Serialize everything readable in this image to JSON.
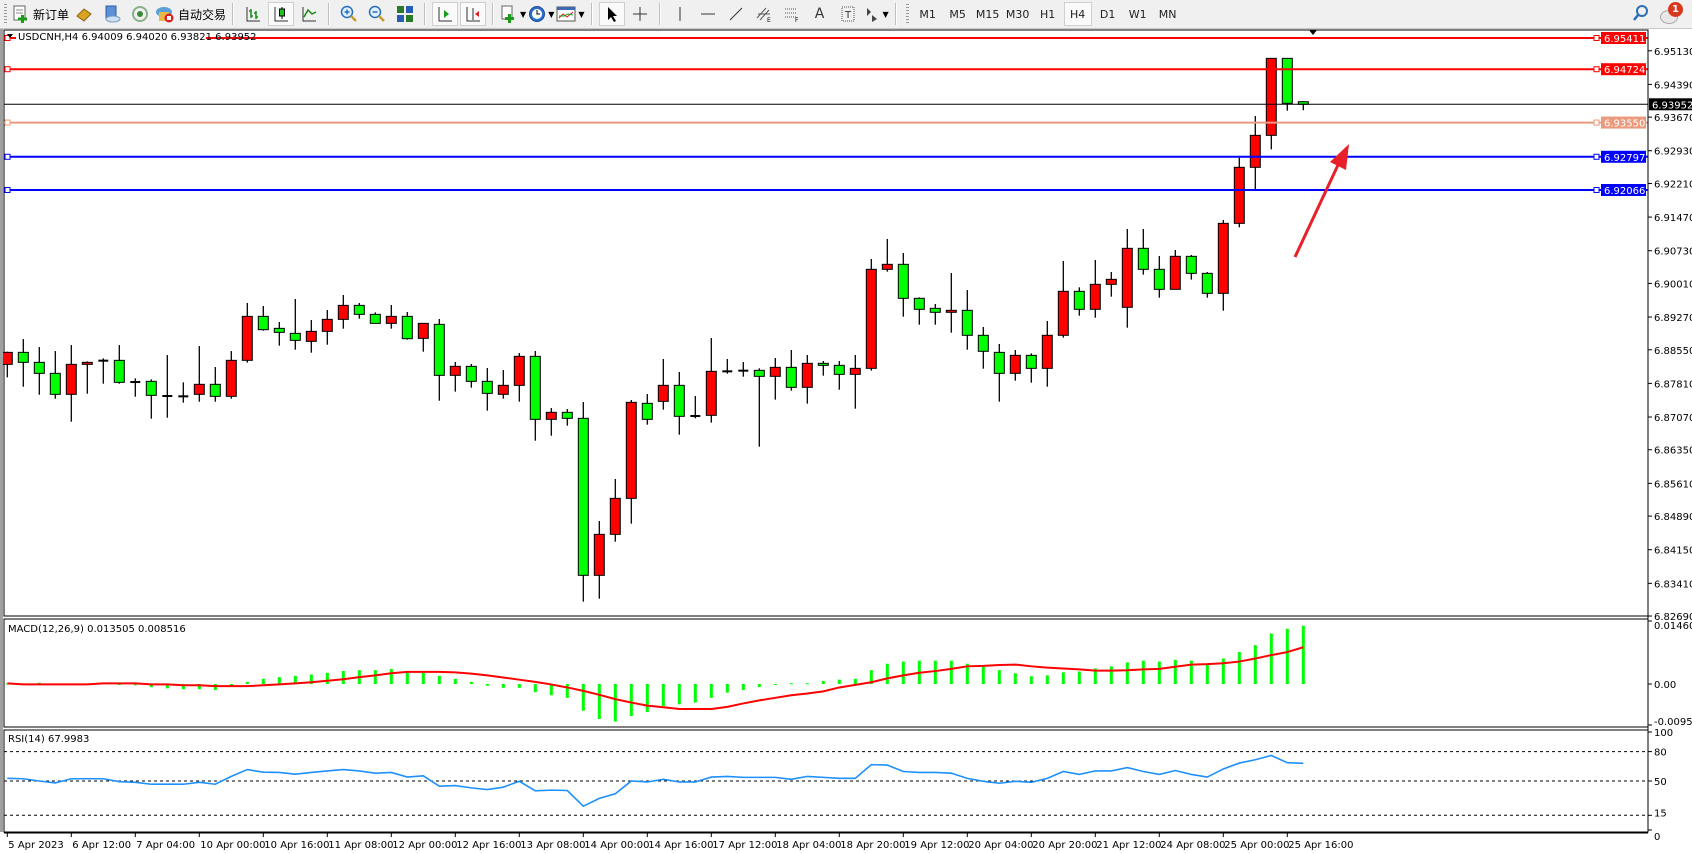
{
  "toolbar": {
    "new_order_label": "新订单",
    "auto_trading_label": "自动交易",
    "timeframes": [
      "M1",
      "M5",
      "M15",
      "M30",
      "H1",
      "H4",
      "D1",
      "W1",
      "MN"
    ],
    "active_timeframe": "H4",
    "notification_count": "1"
  },
  "colors": {
    "bull_body": "#ff0000",
    "bear_body": "#00ff00",
    "candle_outline": "#000000",
    "macd_hist": "#00ff00",
    "macd_signal": "#ff0000",
    "rsi_line": "#1e90ff",
    "arrow": "#e8202a"
  },
  "chart_data": {
    "type": "candlestick",
    "header": "USDCNH,H4  6.94009 6.94020 6.93821 6.93952",
    "ohlc_order": [
      "open",
      "high",
      "low",
      "close"
    ],
    "candles": [
      [
        6.88229,
        6.88508,
        6.87943,
        6.88493
      ],
      [
        6.88493,
        6.88786,
        6.87737,
        6.88273
      ],
      [
        6.88273,
        6.8861,
        6.87561,
        6.88031
      ],
      [
        6.88031,
        6.88522,
        6.87473,
        6.87569
      ],
      [
        6.87569,
        6.88654,
        6.86967,
        6.88229
      ],
      [
        6.88229,
        6.88295,
        6.87583,
        6.88273
      ],
      [
        6.8831,
        6.88361,
        6.87803,
        6.8831
      ],
      [
        6.88317,
        6.88654,
        6.87803,
        6.87833
      ],
      [
        6.8784,
        6.87921,
        6.87517,
        6.8784
      ],
      [
        6.87855,
        6.87899,
        6.87033,
        6.87547
      ],
      [
        6.87532,
        6.88434,
        6.87055,
        6.87532
      ],
      [
        6.87525,
        6.87833,
        6.87385,
        6.87525
      ],
      [
        6.87569,
        6.88632,
        6.87407,
        6.87789
      ],
      [
        6.87789,
        6.8817,
        6.87407,
        6.87525
      ],
      [
        6.87525,
        6.88522,
        6.87473,
        6.88317
      ],
      [
        6.88317,
        6.89579,
        6.88266,
        6.89285
      ],
      [
        6.89285,
        6.89513,
        6.8897,
        6.88992
      ],
      [
        6.89021,
        6.89161,
        6.8864,
        6.88933
      ],
      [
        6.88911,
        6.89667,
        6.88552,
        6.88757
      ],
      [
        6.88735,
        6.89205,
        6.88486,
        6.88955
      ],
      [
        6.88955,
        6.89425,
        6.88662,
        6.89219
      ],
      [
        6.89219,
        6.89755,
        6.89014,
        6.89527
      ],
      [
        6.89527,
        6.89579,
        6.89234,
        6.89329
      ],
      [
        6.89329,
        6.89373,
        6.89131,
        6.89131
      ],
      [
        6.89131,
        6.89535,
        6.89014,
        6.89285
      ],
      [
        6.89285,
        6.89381,
        6.88772,
        6.88794
      ],
      [
        6.88801,
        6.89131,
        6.88508,
        6.89131
      ],
      [
        6.89109,
        6.89227,
        6.87429,
        6.87987
      ],
      [
        6.87987,
        6.88281,
        6.87628,
        6.88185
      ],
      [
        6.88185,
        6.88237,
        6.87716,
        6.87855
      ],
      [
        6.87855,
        6.88149,
        6.8721,
        6.87591
      ],
      [
        6.87569,
        6.88105,
        6.87474,
        6.87767
      ],
      [
        6.87767,
        6.88479,
        6.87408,
        6.88405
      ],
      [
        6.88405,
        6.88523,
        6.86549,
        6.87019
      ],
      [
        6.87019,
        6.87268,
        6.86659,
        6.87173
      ],
      [
        6.87173,
        6.87246,
        6.8688,
        6.87041
      ],
      [
        6.87041,
        6.874,
        6.83006,
        6.83586
      ],
      [
        6.83586,
        6.84781,
        6.83072,
        6.84488
      ],
      [
        6.84488,
        6.85706,
        6.84327,
        6.8528
      ],
      [
        6.8528,
        6.87444,
        6.84723,
        6.87393
      ],
      [
        6.87371,
        6.87576,
        6.86902,
        6.87019
      ],
      [
        6.87415,
        6.88347,
        6.87232,
        6.87767
      ],
      [
        6.87767,
        6.88061,
        6.86681,
        6.87085
      ],
      [
        6.87092,
        6.87532,
        6.87041,
        6.87092
      ],
      [
        6.87107,
        6.88809,
        6.86946,
        6.88075
      ],
      [
        6.88075,
        6.88347,
        6.88024,
        6.88075
      ],
      [
        6.8809,
        6.88281,
        6.87958,
        6.8809
      ],
      [
        6.88097,
        6.88141,
        6.86417,
        6.87965
      ],
      [
        6.87965,
        6.88369,
        6.87452,
        6.88163
      ],
      [
        6.88163,
        6.88545,
        6.8765,
        6.87723
      ],
      [
        6.87723,
        6.88435,
        6.87364,
        6.88251
      ],
      [
        6.88251,
        6.88303,
        6.8798,
        6.88207
      ],
      [
        6.88207,
        6.88303,
        6.87672,
        6.88009
      ],
      [
        6.88009,
        6.88435,
        6.87254,
        6.88141
      ],
      [
        6.88141,
        6.90548,
        6.8809,
        6.9032
      ],
      [
        6.9032,
        6.90988,
        6.90269,
        6.9043
      ],
      [
        6.9043,
        6.9068,
        6.89278,
        6.89682
      ],
      [
        6.89682,
        6.89704,
        6.89102,
        6.8944
      ],
      [
        6.89462,
        6.89557,
        6.89102,
        6.89374
      ],
      [
        6.89374,
        6.90239,
        6.88926,
        6.89418
      ],
      [
        6.89418,
        6.89865,
        6.88552,
        6.88868
      ],
      [
        6.88868,
        6.89051,
        6.88134,
        6.88516
      ],
      [
        6.88493,
        6.88677,
        6.87408,
        6.88031
      ],
      [
        6.88031,
        6.88545,
        6.8787,
        6.88427
      ],
      [
        6.88427,
        6.88471,
        6.87826,
        6.88141
      ],
      [
        6.88141,
        6.89183,
        6.87738,
        6.88868
      ],
      [
        6.88868,
        6.90504,
        6.88816,
        6.89836
      ],
      [
        6.89836,
        6.89924,
        6.893,
        6.8944
      ],
      [
        6.8944,
        6.90526,
        6.89256,
        6.8999
      ],
      [
        6.8999,
        6.90261,
        6.89719,
        6.901
      ],
      [
        6.89484,
        6.91208,
        6.89036,
        6.90782
      ],
      [
        6.90782,
        6.91208,
        6.90203,
        6.9032
      ],
      [
        6.9032,
        6.90614,
        6.89696,
        6.8988
      ],
      [
        6.8988,
        6.90746,
        6.8988,
        6.90606
      ],
      [
        6.90606,
        6.90636,
        6.90093,
        6.90232
      ],
      [
        6.90232,
        6.90261,
        6.89696,
        6.89792
      ],
      [
        6.89792,
        6.91406,
        6.8941,
        6.91332
      ],
      [
        6.91332,
        6.92777,
        6.91244,
        6.92565
      ],
      [
        6.92565,
        6.93694,
        6.9208,
        6.93269
      ],
      [
        6.93269,
        6.94963,
        6.92961,
        6.94963
      ],
      [
        6.94963,
        6.94963,
        6.93812,
        6.93973
      ],
      [
        6.94009,
        6.9402,
        6.93821,
        6.93952
      ]
    ],
    "time_labels": [
      "5 Apr 2023",
      "6 Apr 12:00",
      "7 Apr 04:00",
      "10 Apr 00:00",
      "10 Apr 16:00",
      "11 Apr 08:00",
      "12 Apr 00:00",
      "12 Apr 16:00",
      "13 Apr 08:00",
      "14 Apr 00:00",
      "14 Apr 16:00",
      "17 Apr 12:00",
      "18 Apr 04:00",
      "18 Apr 20:00",
      "19 Apr 12:00",
      "20 Apr 04:00",
      "20 Apr 20:00",
      "21 Apr 12:00",
      "24 Apr 08:00",
      "25 Apr 00:00",
      "25 Apr 16:00"
    ],
    "price_ticks": [
      "6.95130",
      "6.94390",
      "6.93670",
      "6.92930",
      "6.92210",
      "6.91470",
      "6.90730",
      "6.90010",
      "6.89270",
      "6.88550",
      "6.87810",
      "6.87070",
      "6.86350",
      "6.85610",
      "6.84890",
      "6.84150",
      "6.83410",
      "6.82690"
    ],
    "price_range": [
      6.8269,
      6.9555
    ],
    "horizontal_lines": [
      {
        "price": "6.95411",
        "color": "#ff0000",
        "text_color": "#ffffff"
      },
      {
        "price": "6.94724",
        "color": "#ff0000",
        "text_color": "#ffffff"
      },
      {
        "price": "6.93952",
        "color": "#000000",
        "text_color": "#ffffff",
        "thin": true
      },
      {
        "price": "6.93550",
        "color": "#ec9a7e",
        "text_color": "#ffffff"
      },
      {
        "price": "6.92797",
        "color": "#0000ff",
        "text_color": "#ffffff"
      },
      {
        "price": "6.92066",
        "color": "#0000ff",
        "text_color": "#ffffff"
      }
    ],
    "macd": {
      "label": "MACD(12,26,9) 0.013505 0.008516",
      "axis_labels": [
        "0.014601",
        "0.00",
        "-0.009501"
      ],
      "range": [
        -0.009501,
        0.014601
      ],
      "histogram": [
        0.0001,
        0,
        0.0003,
        0,
        0,
        0,
        0.0003,
        0,
        -0.0003,
        -0.00075,
        -0.001,
        -0.0012,
        -0.0012,
        -0.0014,
        -0.0007,
        0.0005,
        0.0012,
        0.0016,
        0.0019,
        0.0022,
        0.0026,
        0.003,
        0.0032,
        0.0032,
        0.0035,
        0.003,
        0.0026,
        0.0019,
        0.0012,
        0.0005,
        -0.0004,
        -0.0009,
        -0.0009,
        -0.0019,
        -0.0026,
        -0.0032,
        -0.0062,
        -0.0081,
        -0.0087,
        -0.0074,
        -0.0065,
        -0.0051,
        -0.0047,
        -0.0043,
        -0.0032,
        -0.002,
        -0.0014,
        -0.0007,
        -0.0002,
        0.0002,
        0.0002,
        0.0007,
        0.001,
        0.0012,
        0.0032,
        0.0047,
        0.0052,
        0.0054,
        0.0054,
        0.0054,
        0.0047,
        0.0041,
        0.0032,
        0.0025,
        0.0018,
        0.002,
        0.0027,
        0.0029,
        0.0036,
        0.0041,
        0.005,
        0.0054,
        0.0052,
        0.0056,
        0.0054,
        0.0045,
        0.0059,
        0.0074,
        0.009,
        0.0117,
        0.0128,
        0.013505
      ],
      "signal": [
        0.00015,
        -0.0001,
        -0.0001,
        -0.0001,
        -0.0001,
        -0.0001,
        0.00015,
        0.00015,
        0.00015,
        -0.0001,
        -0.0001,
        -0.0003,
        -0.0003,
        -0.0005,
        -0.0005,
        -0.0005,
        -0.0003,
        -0.0001,
        0.00015,
        0.0004,
        0.00075,
        0.0011,
        0.0016,
        0.002,
        0.0025,
        0.0028,
        0.0028,
        0.0028,
        0.0027,
        0.0024,
        0.002,
        0.0015,
        0.001,
        0.0005,
        -0.0001,
        -0.0008,
        -0.0016,
        -0.0025,
        -0.0035,
        -0.0043,
        -0.005,
        -0.0054,
        -0.0058,
        -0.0058,
        -0.0058,
        -0.0053,
        -0.0045,
        -0.0038,
        -0.0032,
        -0.0026,
        -0.0022,
        -0.0017,
        -0.0008,
        -0.0002,
        0.0004,
        0.0013,
        0.002,
        0.0026,
        0.003,
        0.0035,
        0.0041,
        0.0042,
        0.0044,
        0.0045,
        0.0041,
        0.0038,
        0.0036,
        0.0034,
        0.0031,
        0.0031,
        0.0032,
        0.0034,
        0.0035,
        0.004,
        0.0045,
        0.0046,
        0.0048,
        0.0052,
        0.0059,
        0.0067,
        0.0074,
        0.008516
      ]
    },
    "rsi": {
      "label": "RSI(14) 67.9983",
      "axis_labels": [
        "100",
        "80",
        "50",
        "15",
        "0"
      ],
      "levels": [
        80,
        50,
        15
      ],
      "range": [
        0,
        100
      ],
      "values": [
        52.7,
        52.3,
        50,
        48,
        52.3,
        52.3,
        52.3,
        49.3,
        48.7,
        46.7,
        46.7,
        46.7,
        48.7,
        46.7,
        54.7,
        61.7,
        59,
        58.7,
        57,
        58.7,
        60.3,
        61.7,
        60.3,
        58,
        58.7,
        54,
        55.3,
        44.7,
        45.3,
        43,
        41.3,
        43.7,
        49.7,
        40,
        40.7,
        40.3,
        24.3,
        32.3,
        37,
        50,
        49,
        51.7,
        49,
        49,
        54,
        54.7,
        53.7,
        53.7,
        53.7,
        51.7,
        54.7,
        53.7,
        52.7,
        52.7,
        66.7,
        66.3,
        59.7,
        58.7,
        58.7,
        58,
        52.7,
        49.7,
        47.7,
        49.7,
        48.7,
        52.7,
        59.7,
        56.7,
        60.3,
        60.3,
        63.7,
        59.7,
        56.7,
        60.7,
        56.7,
        54,
        62.3,
        68.3,
        71.7,
        76,
        68.7,
        67.9983
      ]
    }
  }
}
